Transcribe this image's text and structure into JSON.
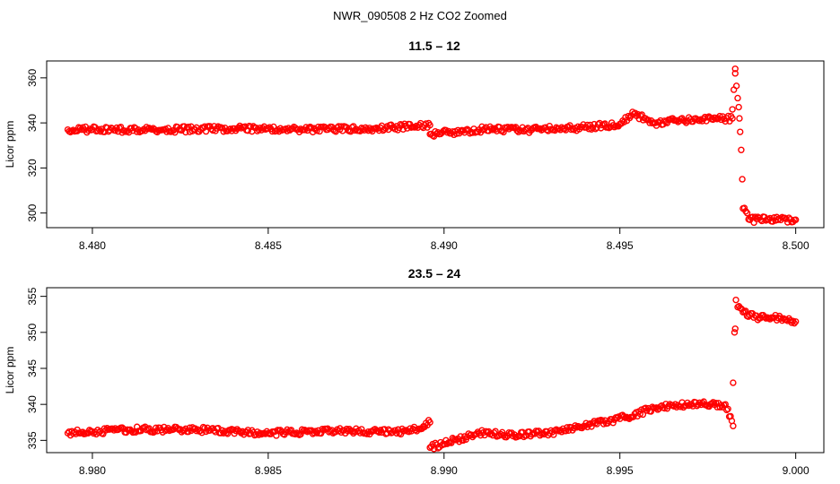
{
  "suptitle": "NWR_090508  2 Hz CO2 Zoomed",
  "colors": {
    "points": "#ff0000",
    "axis": "#000000",
    "background": "#ffffff"
  },
  "chart_data": [
    {
      "type": "scatter",
      "title": "11.5 – 12",
      "xlabel": "",
      "ylabel": "Licor ppm",
      "xlim": [
        8.4787,
        8.5008
      ],
      "ylim": [
        293.5,
        367.5
      ],
      "xticks": [
        "8.480",
        "8.485",
        "8.490",
        "8.495",
        "8.500"
      ],
      "xtick_values": [
        8.48,
        8.485,
        8.49,
        8.495,
        8.5
      ],
      "yticks": [
        "300",
        "320",
        "340",
        "360"
      ],
      "ytick_values": [
        300,
        320,
        340,
        360
      ],
      "marker": "open-circle",
      "grid": false,
      "series": [
        {
          "x": [
            8.4793,
            8.48,
            8.482,
            8.484,
            8.486,
            8.488,
            8.4896,
            8.4896,
            8.491,
            8.4925,
            8.494,
            8.495,
            8.4954,
            8.496,
            8.497,
            8.4978,
            8.4982,
            8.4982,
            8.49828,
            8.49828,
            8.49835,
            8.49838,
            8.4984,
            8.49842,
            8.49845,
            8.49848,
            8.4985,
            8.4987,
            8.499,
            8.4995,
            8.5
          ],
          "y": [
            337,
            337,
            337,
            337.5,
            337,
            337.5,
            339,
            335,
            337,
            337,
            338,
            339.5,
            344,
            340,
            341.5,
            342,
            342,
            346,
            364,
            362,
            351,
            347,
            342,
            336,
            328,
            315,
            302,
            297,
            297,
            297,
            297
          ]
        }
      ]
    },
    {
      "type": "scatter",
      "title": "23.5 – 24",
      "xlabel": "",
      "ylabel": "Licor ppm",
      "xlim": [
        8.9787,
        9.0008
      ],
      "ylim": [
        333.3,
        356.2
      ],
      "xticks": [
        "8.980",
        "8.985",
        "8.990",
        "8.995",
        "9.000"
      ],
      "xtick_values": [
        8.98,
        8.985,
        8.99,
        8.995,
        9.0
      ],
      "yticks": [
        "335",
        "340",
        "345",
        "350",
        "355"
      ],
      "ytick_values": [
        335,
        340,
        345,
        350,
        355
      ],
      "marker": "open-circle",
      "grid": false,
      "series": [
        {
          "x": [
            8.9793,
            8.981,
            8.983,
            8.985,
            8.987,
            8.989,
            8.9896,
            8.9896,
            8.991,
            8.992,
            8.993,
            8.994,
            8.995,
            8.996,
            8.997,
            8.998,
            8.99822,
            8.99822,
            8.99826,
            8.99828,
            8.9983,
            8.99835,
            8.9985,
            8.999,
            8.9995,
            9.0
          ],
          "y": [
            336,
            336.5,
            336.5,
            336,
            336.3,
            336.2,
            337.5,
            334,
            336,
            335.8,
            336,
            337,
            338,
            339.5,
            340,
            340,
            337,
            343,
            350,
            350.5,
            354.5,
            353.5,
            352.8,
            352,
            352,
            351.5
          ]
        }
      ]
    }
  ]
}
